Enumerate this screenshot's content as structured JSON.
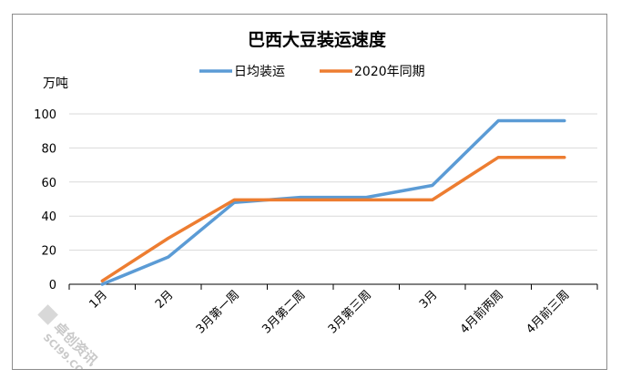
{
  "chart_data": {
    "type": "line",
    "title": "巴西大豆装运速度",
    "ylabel": "万吨",
    "xlabel": "",
    "ylim": [
      0,
      100
    ],
    "yticks": [
      0,
      20,
      40,
      60,
      80,
      100
    ],
    "grid": true,
    "legend_position": "top",
    "categories": [
      "1月",
      "2月",
      "3月第一周",
      "3月第二周",
      "3月第三周",
      "3月",
      "4月前两周",
      "4月前三周"
    ],
    "series": [
      {
        "name": "日均装运",
        "color": "#5b9bd5",
        "values": [
          0,
          16,
          48,
          51,
          51,
          58,
          96,
          96
        ]
      },
      {
        "name": "2020年同期",
        "color": "#ed7d31",
        "values": [
          2,
          27,
          49.5,
          49.5,
          49.5,
          49.5,
          74.5,
          74.5
        ]
      }
    ]
  },
  "watermark": {
    "text": "卓创资讯",
    "subtext": "SCI99.COM"
  }
}
